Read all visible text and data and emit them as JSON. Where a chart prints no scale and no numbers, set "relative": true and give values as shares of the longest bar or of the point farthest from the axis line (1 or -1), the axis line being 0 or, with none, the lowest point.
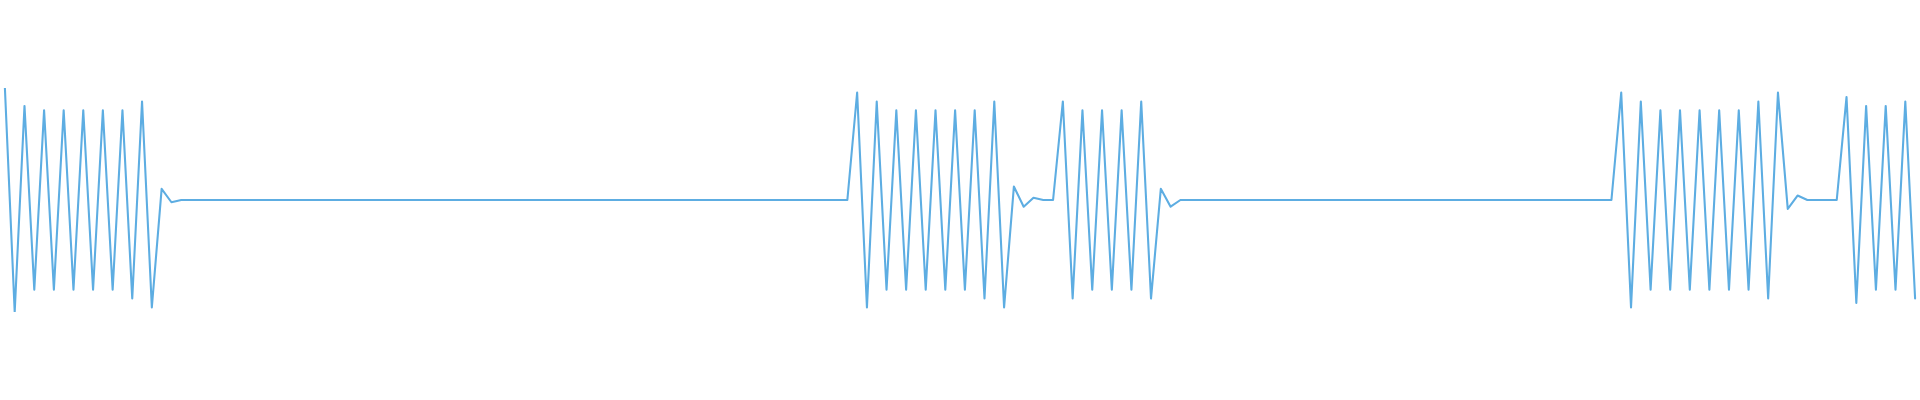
{
  "chart_data": {
    "type": "line",
    "relative": true,
    "categories": [
      null,
      null,
      null,
      null,
      null,
      null,
      null,
      null,
      null,
      null,
      null,
      null,
      null,
      null,
      null,
      null,
      null,
      null,
      null,
      null,
      null,
      null,
      null,
      null,
      null,
      null,
      null,
      null,
      null,
      null,
      null,
      null,
      null,
      null,
      null,
      null,
      null,
      null,
      null,
      null,
      null,
      null,
      null,
      null,
      null,
      null,
      null,
      null,
      null,
      null,
      null,
      null,
      null,
      null,
      null,
      null,
      null,
      null,
      null,
      null,
      null,
      null,
      null,
      null,
      null,
      null,
      null,
      null,
      null,
      null,
      null,
      null,
      null,
      null,
      null,
      null,
      null,
      null,
      null,
      null,
      null,
      null,
      null,
      null,
      null,
      null,
      null,
      null,
      null,
      null,
      null,
      null,
      null,
      null,
      null,
      null,
      null,
      null,
      null,
      null,
      null,
      null,
      null,
      null,
      null,
      null,
      null,
      null,
      null,
      null,
      null,
      null,
      null,
      null,
      null,
      null,
      null,
      null,
      null,
      null,
      null,
      null,
      null,
      null,
      null,
      null,
      null,
      null,
      null,
      null,
      null,
      null,
      null,
      null,
      null,
      null,
      null,
      null,
      null,
      null,
      null,
      null,
      null,
      null,
      null,
      null,
      null,
      null,
      null,
      null,
      null,
      null,
      null,
      null,
      null,
      null,
      null,
      null,
      null,
      null,
      null,
      null,
      null,
      null,
      null,
      null,
      null,
      null,
      null,
      null,
      null,
      null,
      null,
      null,
      null,
      null,
      null,
      null,
      null,
      null,
      null,
      null,
      null,
      null,
      null,
      null,
      null,
      null,
      null,
      null,
      null,
      null,
      null,
      null,
      null,
      null
    ],
    "series": [
      {
        "color": "#5dade2",
        "values": [
          1,
          0,
          0.92,
          0.1,
          0.9,
          0.1,
          0.9,
          0.1,
          0.9,
          0.1,
          0.9,
          0.1,
          0.9,
          0.06,
          0.94,
          0.02,
          0.55,
          0.49,
          0.5,
          0.5,
          0.5,
          0.5,
          0.5,
          0.5,
          0.5,
          0.5,
          0.5,
          0.5,
          0.5,
          0.5,
          0.5,
          0.5,
          0.5,
          0.5,
          0.5,
          0.5,
          0.5,
          0.5,
          0.5,
          0.5,
          0.5,
          0.5,
          0.5,
          0.5,
          0.5,
          0.5,
          0.5,
          0.5,
          0.5,
          0.5,
          0.5,
          0.5,
          0.5,
          0.5,
          0.5,
          0.5,
          0.5,
          0.5,
          0.5,
          0.5,
          0.5,
          0.5,
          0.5,
          0.5,
          0.5,
          0.5,
          0.5,
          0.5,
          0.5,
          0.5,
          0.5,
          0.5,
          0.5,
          0.5,
          0.5,
          0.5,
          0.5,
          0.5,
          0.5,
          0.5,
          0.5,
          0.5,
          0.5,
          0.5,
          0.5,
          0.5,
          0.5,
          0.98,
          0.02,
          0.94,
          0.1,
          0.9,
          0.1,
          0.9,
          0.1,
          0.9,
          0.1,
          0.9,
          0.1,
          0.9,
          0.06,
          0.94,
          0.02,
          0.56,
          0.47,
          0.51,
          0.5,
          0.5,
          0.94,
          0.06,
          0.9,
          0.1,
          0.9,
          0.1,
          0.9,
          0.1,
          0.94,
          0.06,
          0.55,
          0.47,
          0.5,
          0.5,
          0.5,
          0.5,
          0.5,
          0.5,
          0.5,
          0.5,
          0.5,
          0.5,
          0.5,
          0.5,
          0.5,
          0.5,
          0.5,
          0.5,
          0.5,
          0.5,
          0.5,
          0.5,
          0.5,
          0.5,
          0.5,
          0.5,
          0.5,
          0.5,
          0.5,
          0.5,
          0.5,
          0.5,
          0.5,
          0.5,
          0.5,
          0.5,
          0.5,
          0.5,
          0.5,
          0.5,
          0.5,
          0.5,
          0.5,
          0.5,
          0.5,
          0.5,
          0.5,
          0.98,
          0.02,
          0.94,
          0.1,
          0.9,
          0.1,
          0.9,
          0.1,
          0.9,
          0.1,
          0.9,
          0.1,
          0.9,
          0.1,
          0.94,
          0.06,
          0.98,
          0.46,
          0.52,
          0.5,
          0.5,
          0.5,
          0.5,
          0.96,
          0.04,
          0.92,
          0.1,
          0.92,
          0.1,
          0.94,
          0.06
        ]
      }
    ]
  }
}
